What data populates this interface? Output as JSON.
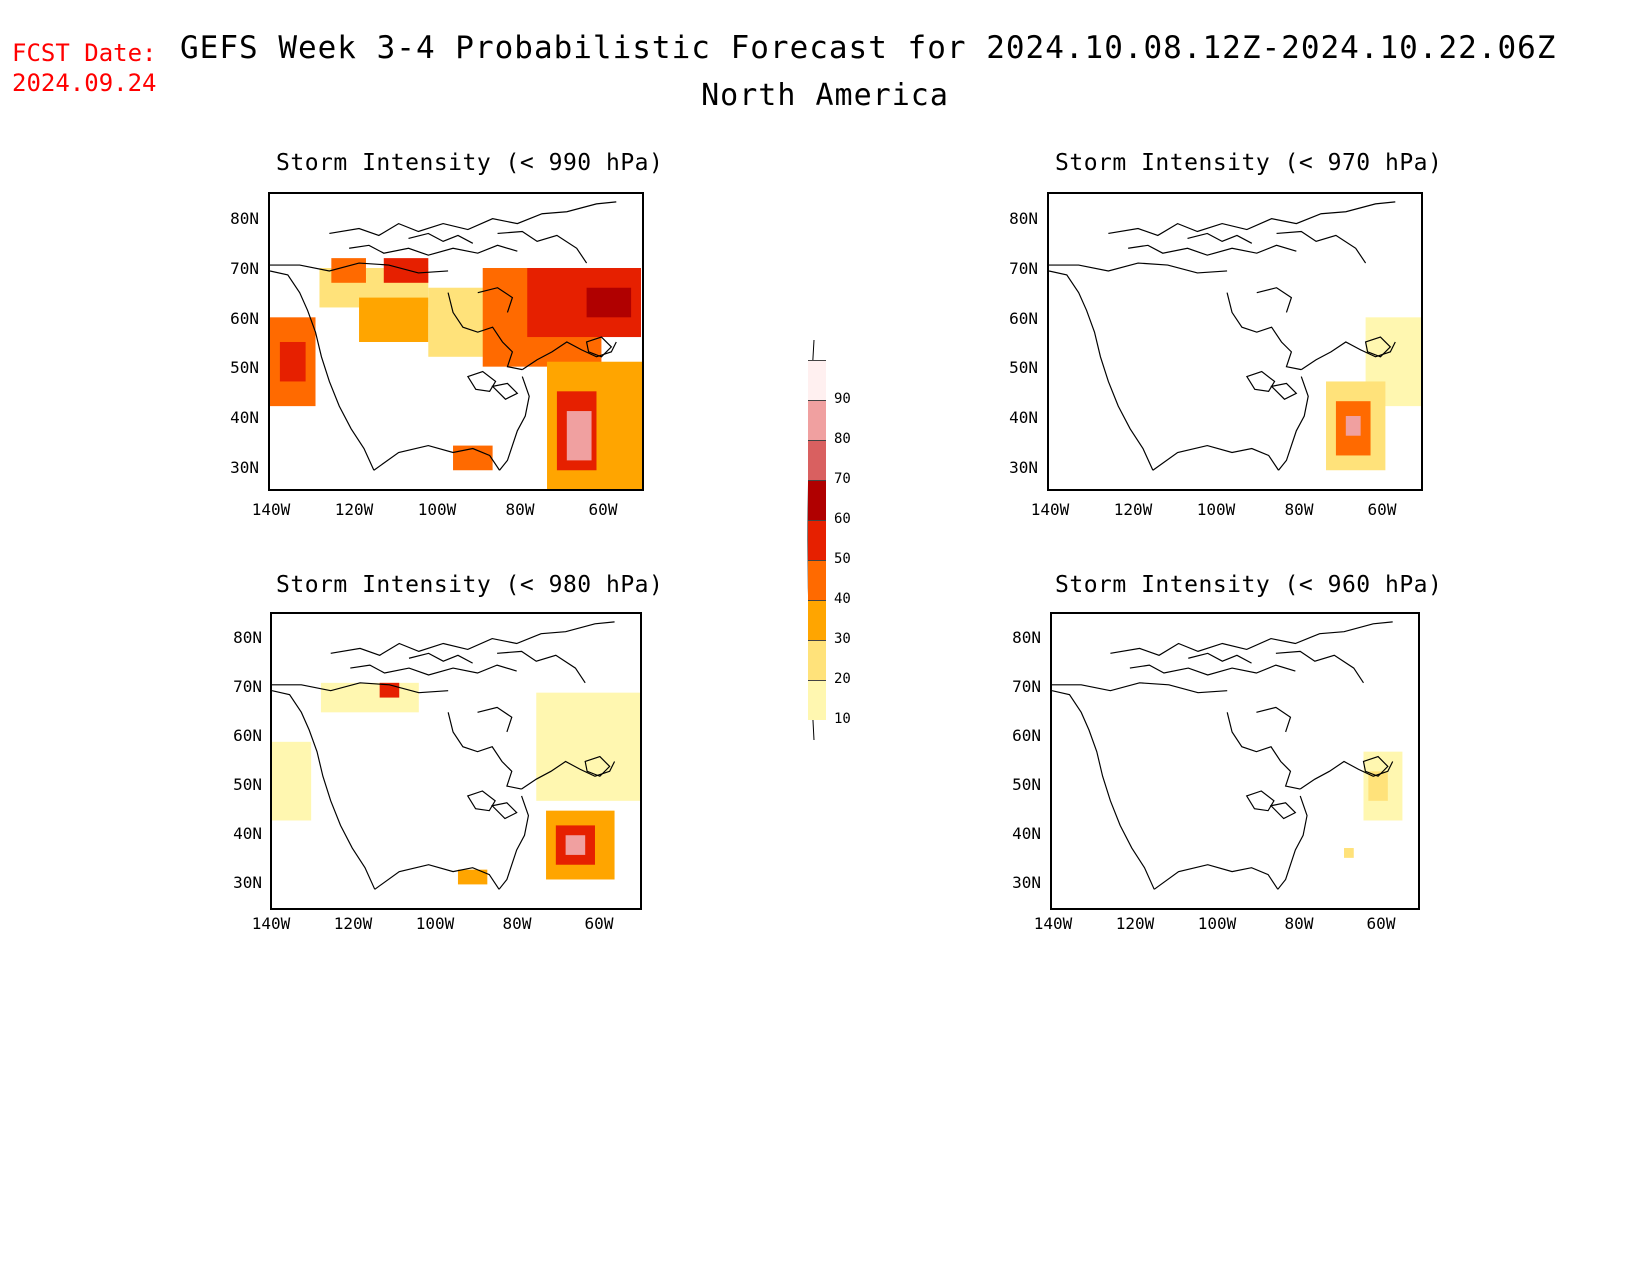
{
  "header": {
    "fcst_label": "FCST Date:",
    "fcst_date": "2024.09.24",
    "title": "GEFS Week 3-4 Probabilistic Forecast for 2024.10.08.12Z-2024.10.22.06Z",
    "subtitle": "North America"
  },
  "axes": {
    "lat_labels": [
      "80N",
      "70N",
      "60N",
      "50N",
      "40N",
      "30N"
    ],
    "lon_labels": [
      "140W",
      "120W",
      "100W",
      "80W",
      "60W"
    ]
  },
  "panels": [
    {
      "id": "p990",
      "title": "Storm Intensity (< 990 hPa)"
    },
    {
      "id": "p970",
      "title": "Storm Intensity (< 970 hPa)"
    },
    {
      "id": "p980",
      "title": "Storm Intensity (< 980 hPa)"
    },
    {
      "id": "p960",
      "title": "Storm Intensity (< 960 hPa)"
    }
  ],
  "colorbar": {
    "levels": [
      "10",
      "20",
      "30",
      "40",
      "50",
      "60",
      "70",
      "80",
      "90"
    ],
    "colors": [
      "#fff7b0",
      "#ffe27a",
      "#ffa500",
      "#ff6a00",
      "#e62000",
      "#b00000",
      "#d96060",
      "#f0a0a0",
      "#fff0f0"
    ]
  }
}
